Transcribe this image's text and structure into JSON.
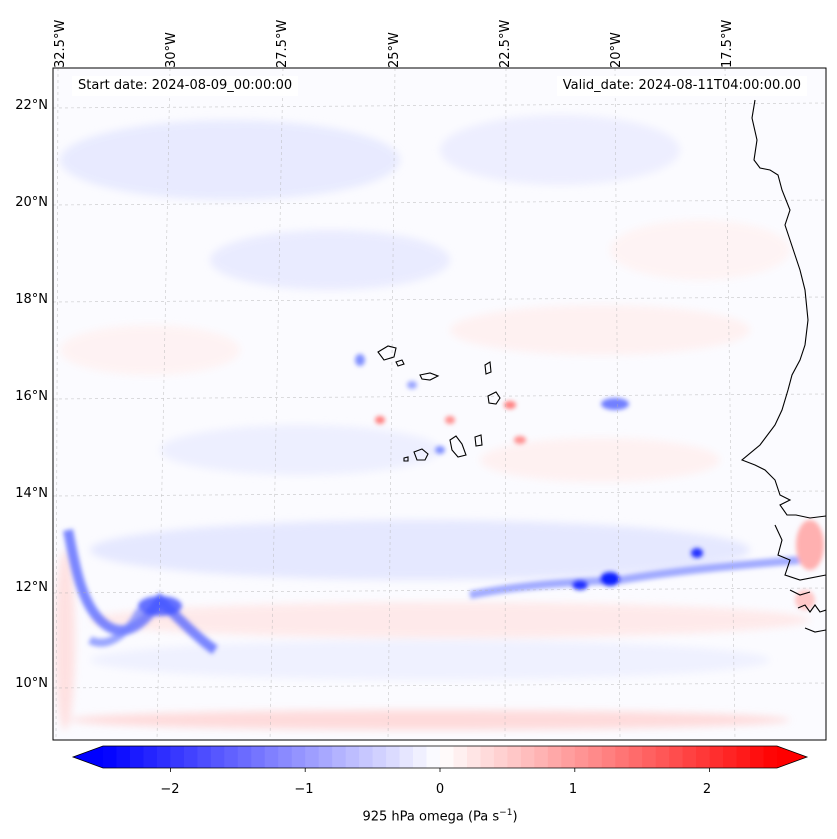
{
  "header": {
    "start_date": "Start date: 2024-08-09_00:00:00",
    "valid_date": "Valid_date: 2024-08-11T04:00:00.00"
  },
  "map": {
    "region": "Eastern tropical North Atlantic, Cape Verde Islands and West African coast",
    "lon_range": [
      -33.0,
      -16.0
    ],
    "lat_range": [
      8.9,
      22.8
    ],
    "lon_ticks": [
      "32.5°W",
      "30°W",
      "27.5°W",
      "25°W",
      "22.5°W",
      "20°W",
      "17.5°W"
    ],
    "lat_ticks": [
      "22°N",
      "20°N",
      "18°N",
      "16°N",
      "14°N",
      "12°N",
      "10°N"
    ],
    "gridlines": true
  },
  "colorbar": {
    "label": "925 hPa omega (Pa s",
    "label_superscript": "−1",
    "label_suffix": ")",
    "range": [
      -2.5,
      2.5
    ],
    "ticks": [
      "−2",
      "−1",
      "0",
      "1",
      "2"
    ],
    "colormap": "bwr",
    "extend": "both",
    "colors": {
      "negative": "#0000ff",
      "neutral": "#ffffff",
      "positive": "#ff0000"
    }
  }
}
